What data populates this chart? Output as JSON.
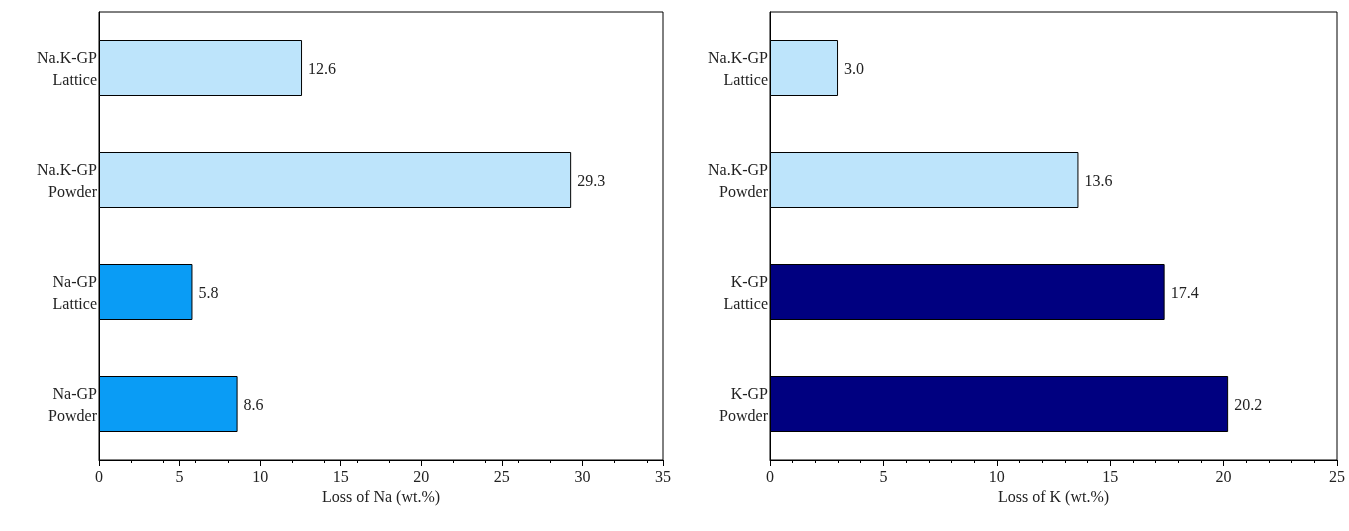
{
  "chart_data": [
    {
      "type": "bar",
      "orientation": "horizontal",
      "xlabel": "Loss of Na (wt.%)",
      "categories": [
        "Na.K-GP\nLattice",
        "Na.K-GP\nPowder",
        "Na-GP\nLattice",
        "Na-GP\nPowder"
      ],
      "values": [
        12.6,
        29.3,
        5.8,
        8.6
      ],
      "colors": [
        "#bde4fb",
        "#bde4fb",
        "#0a9cf5",
        "#0a9cf5"
      ],
      "value_labels": [
        "12.6",
        "29.3",
        "5.8",
        "8.6"
      ],
      "xlim": [
        0,
        35
      ],
      "xticks": [
        0,
        5,
        10,
        15,
        20,
        25,
        30,
        35
      ]
    },
    {
      "type": "bar",
      "orientation": "horizontal",
      "xlabel": "Loss of K (wt.%)",
      "categories": [
        "Na.K-GP\nLattice",
        "Na.K-GP\nPowder",
        "K-GP\nLattice",
        "K-GP\nPowder"
      ],
      "values": [
        3.0,
        13.6,
        17.4,
        20.2
      ],
      "colors": [
        "#bde4fb",
        "#bde4fb",
        "#000080",
        "#000080"
      ],
      "value_labels": [
        "3.0",
        "13.6",
        "17.4",
        "20.2"
      ],
      "xlim": [
        0,
        25
      ],
      "xticks": [
        0,
        5,
        10,
        15,
        20,
        25
      ]
    }
  ]
}
